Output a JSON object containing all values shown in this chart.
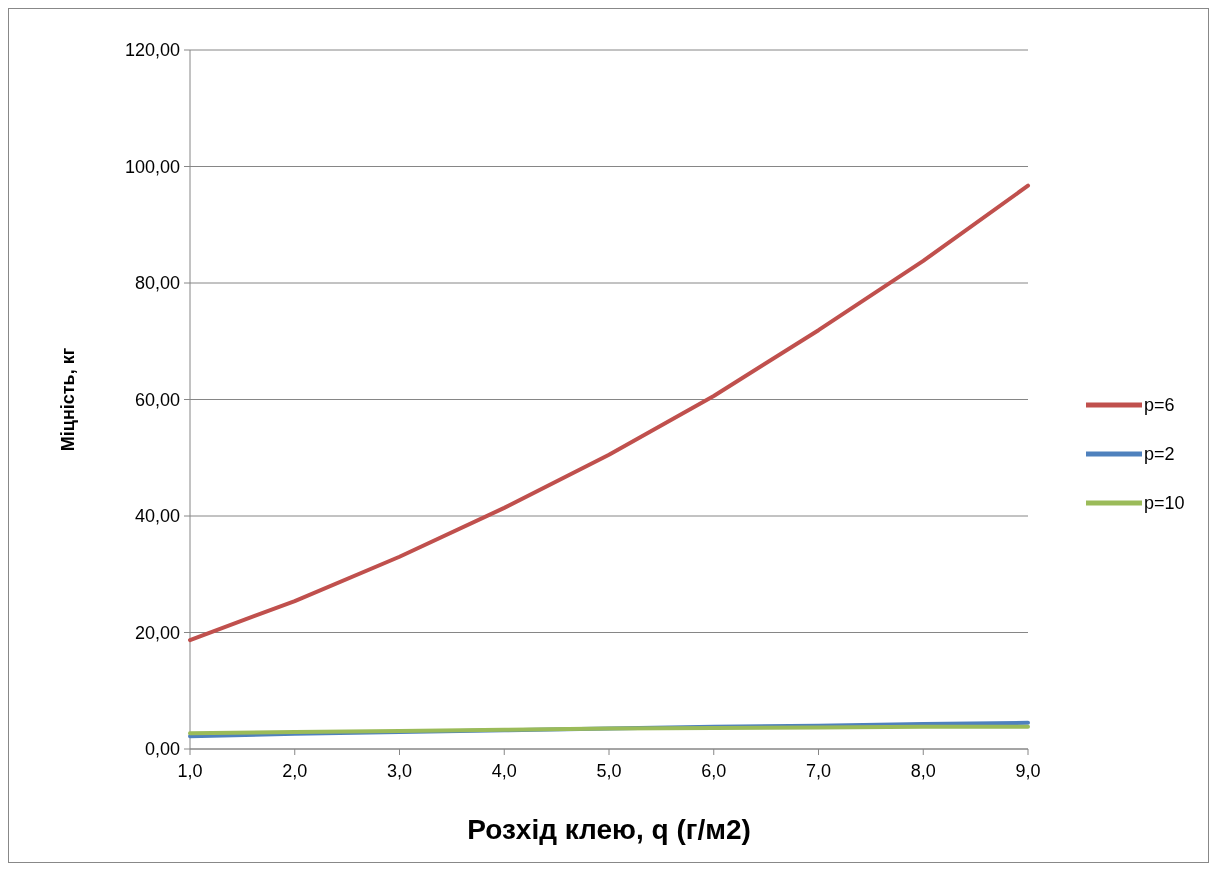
{
  "chart_data": {
    "type": "line",
    "xlabel": "Розхід клею, q (г/м2)",
    "ylabel": "Міцність, кг",
    "x": [
      1,
      2,
      3,
      4,
      5,
      6,
      7,
      8,
      9
    ],
    "xlim": [
      1,
      9
    ],
    "xticks": [
      {
        "value": 1,
        "label": "1,0"
      },
      {
        "value": 2,
        "label": "2,0"
      },
      {
        "value": 3,
        "label": "3,0"
      },
      {
        "value": 4,
        "label": "4,0"
      },
      {
        "value": 5,
        "label": "5,0"
      },
      {
        "value": 6,
        "label": "6,0"
      },
      {
        "value": 7,
        "label": "7,0"
      },
      {
        "value": 8,
        "label": "8,0"
      },
      {
        "value": 9,
        "label": "9,0"
      }
    ],
    "ylim": [
      0,
      120
    ],
    "yticks": [
      {
        "value": 0,
        "label": "0,00"
      },
      {
        "value": 20,
        "label": "20,00"
      },
      {
        "value": 40,
        "label": "40,00"
      },
      {
        "value": 60,
        "label": "60,00"
      },
      {
        "value": 80,
        "label": "80,00"
      },
      {
        "value": 100,
        "label": "100,00"
      },
      {
        "value": 120,
        "label": "120,00"
      }
    ],
    "grid": "y",
    "legend": "right",
    "marker": "none",
    "series": [
      {
        "name": "p=6",
        "color": "#c0504d",
        "values": [
          18.7,
          25.4,
          33.0,
          41.4,
          50.5,
          60.6,
          71.9,
          83.8,
          96.7
        ]
      },
      {
        "name": "p=2",
        "color": "#4f81bd",
        "values": [
          2.2,
          2.6,
          2.9,
          3.2,
          3.5,
          3.8,
          4.0,
          4.3,
          4.5
        ]
      },
      {
        "name": "p=10",
        "color": "#9bbb59",
        "values": [
          2.7,
          2.9,
          3.1,
          3.3,
          3.5,
          3.6,
          3.7,
          3.8,
          3.8
        ]
      }
    ]
  }
}
